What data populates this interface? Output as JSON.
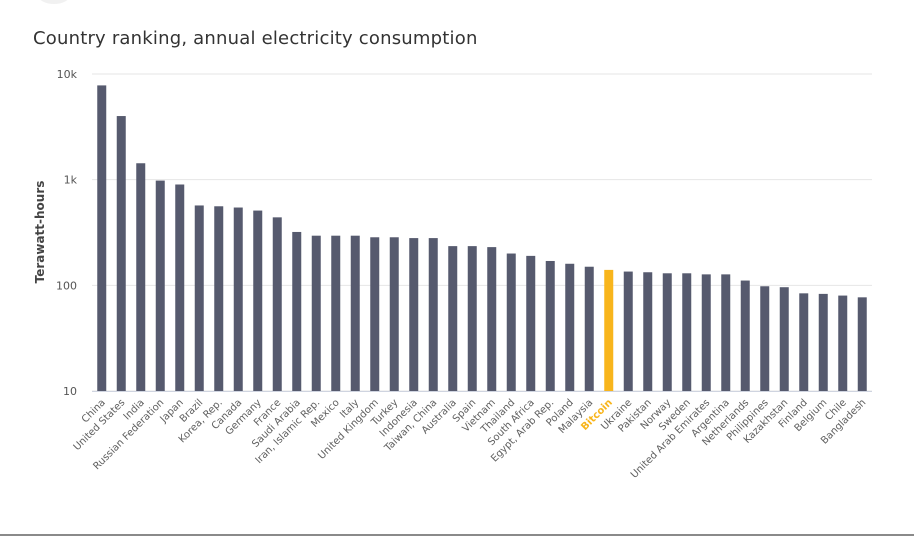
{
  "chart_data": {
    "type": "bar",
    "title": "Country ranking, annual electricity consumption",
    "ylabel": "Terawatt-hours",
    "xlabel": "",
    "y_scale": "log",
    "ylim": [
      10,
      10000
    ],
    "y_ticks": [
      {
        "value": 10,
        "label": "10"
      },
      {
        "value": 100,
        "label": "100"
      },
      {
        "value": 1000,
        "label": "1k"
      },
      {
        "value": 10000,
        "label": "10k"
      }
    ],
    "grid": true,
    "bar_color": "#565a6e",
    "highlight_color": "#f8b51c",
    "highlight_category": "Bitcoin",
    "categories": [
      "China",
      "United States",
      "India",
      "Russian Federation",
      "Japan",
      "Brazil",
      "Korea, Rep.",
      "Canada",
      "Germany",
      "France",
      "Saudi Arabia",
      "Iran, Islamic Rep.",
      "Mexico",
      "Italy",
      "United Kingdom",
      "Turkey",
      "Indonesia",
      "Taiwan, China",
      "Australia",
      "Spain",
      "Vietnam",
      "Thailand",
      "South Africa",
      "Egypt, Arab Rep.",
      "Poland",
      "Malaysia",
      "Bitcoin",
      "Ukraine",
      "Pakistan",
      "Norway",
      "Sweden",
      "United Arab Emirates",
      "Argentina",
      "Netherlands",
      "Philippines",
      "Kazakhstan",
      "Finland",
      "Belgium",
      "Chile",
      "Bangladesh"
    ],
    "values": [
      7800,
      4000,
      1430,
      980,
      900,
      570,
      560,
      545,
      510,
      440,
      320,
      295,
      295,
      295,
      285,
      285,
      280,
      280,
      235,
      235,
      230,
      200,
      190,
      170,
      160,
      150,
      140,
      135,
      133,
      130,
      130,
      127,
      127,
      111,
      98,
      96,
      84,
      83,
      80,
      77
    ]
  }
}
